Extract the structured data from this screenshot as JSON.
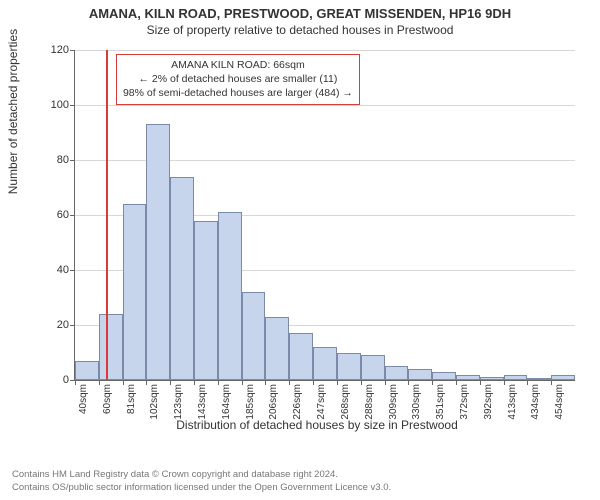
{
  "title": {
    "main": "AMANA, KILN ROAD, PRESTWOOD, GREAT MISSENDEN, HP16 9DH",
    "sub": "Size of property relative to detached houses in Prestwood"
  },
  "chart": {
    "type": "histogram",
    "ylim": [
      0,
      120
    ],
    "ytick_step": 20,
    "ylabel": "Number of detached properties",
    "xlabel": "Distribution of detached houses by size in Prestwood",
    "bar_color": "#c7d5ec",
    "bar_border_color": "#7a8aa8",
    "grid_color": "#d8d8d8",
    "axis_color": "#666666",
    "background_color": "#ffffff",
    "categories": [
      "40sqm",
      "60sqm",
      "81sqm",
      "102sqm",
      "123sqm",
      "143sqm",
      "164sqm",
      "185sqm",
      "206sqm",
      "226sqm",
      "247sqm",
      "268sqm",
      "288sqm",
      "309sqm",
      "330sqm",
      "351sqm",
      "372sqm",
      "392sqm",
      "413sqm",
      "434sqm",
      "454sqm"
    ],
    "values": [
      7,
      24,
      64,
      93,
      74,
      58,
      61,
      32,
      23,
      17,
      12,
      10,
      9,
      5,
      4,
      3,
      2,
      1,
      2,
      0,
      2
    ],
    "marker": {
      "color": "#d93b3b",
      "category_index_after": 1,
      "fraction_into_next": 0.3,
      "callout_lines": [
        "AMANA KILN ROAD: 66sqm",
        "← 2% of detached houses are smaller (11)",
        "98% of semi-detached houses are larger (484) →"
      ]
    }
  },
  "footer": {
    "line1": "Contains HM Land Registry data © Crown copyright and database right 2024.",
    "line2": "Contains OS/public sector information licensed under the Open Government Licence v3.0."
  },
  "typography": {
    "title_fontsize": 13,
    "subtitle_fontsize": 12,
    "axis_label_fontsize": 12,
    "tick_fontsize": 11,
    "callout_fontsize": 10.5,
    "footer_fontsize": 9.5,
    "footer_color": "#777777",
    "text_color": "#333333"
  }
}
